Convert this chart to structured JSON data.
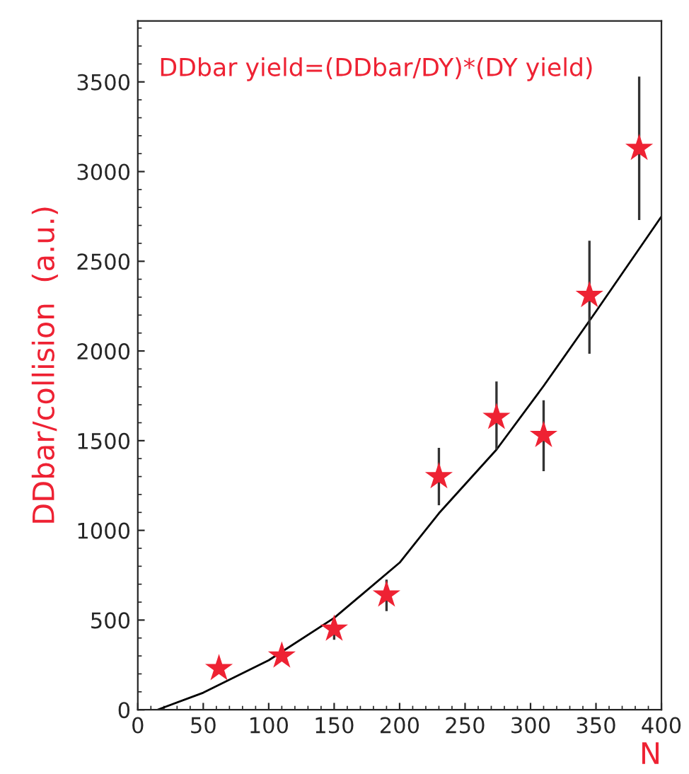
{
  "chart_data": {
    "type": "scatter",
    "xlabel": "N",
    "ylabel": "DDbar/collision  (a.u.)",
    "annotations": [
      "DDbar yield=(DDbar/DY)*(DY yield)"
    ],
    "xlim": [
      0,
      400
    ],
    "ylim": [
      0,
      3840
    ],
    "xticks": [
      0,
      50,
      100,
      150,
      200,
      250,
      300,
      350,
      400
    ],
    "yticks": [
      0,
      500,
      1000,
      1500,
      2000,
      2500,
      3000,
      3500
    ],
    "grid": false,
    "legend": false,
    "series": [
      {
        "color": "#ee2233",
        "marker": "star",
        "x": [
          62,
          110,
          150,
          190,
          230,
          274,
          310,
          345,
          383
        ],
        "values": [
          230,
          300,
          450,
          640,
          1300,
          1630,
          1530,
          2310,
          3130
        ],
        "errors": [
          null,
          30,
          60,
          [
            550,
            725
          ],
          160,
          [
            1450,
            1830
          ],
          [
            1330,
            1725
          ],
          [
            1985,
            2615
          ],
          [
            2730,
            3530
          ]
        ]
      },
      {
        "type": "line",
        "color": "#000000",
        "marker": "none",
        "line_style": "solid",
        "x": [
          15,
          50,
          100,
          150,
          200,
          230,
          274,
          310,
          350,
          400
        ],
        "values": [
          0,
          95,
          276,
          512,
          820,
          1095,
          1450,
          1805,
          2220,
          2750
        ]
      }
    ]
  }
}
